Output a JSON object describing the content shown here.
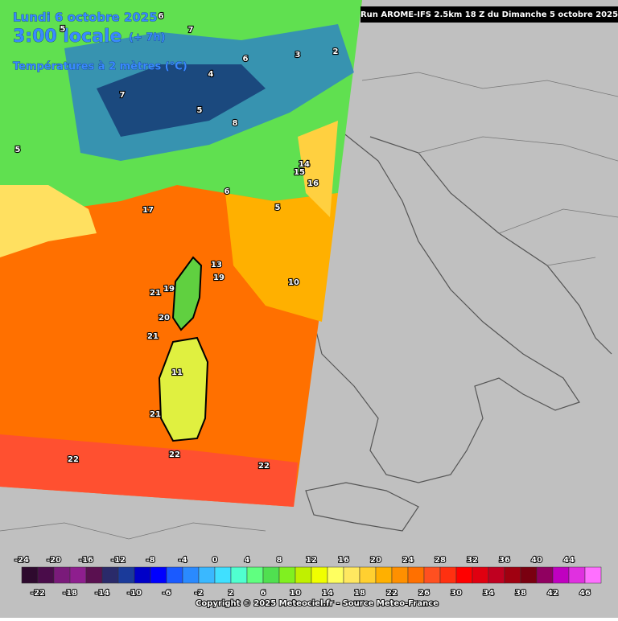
{
  "header": {
    "date": "Lundi 6 octobre 2025",
    "time": "3:00 locale",
    "offset": "(+ 7h)",
    "field": "Températures à 2 mètres (°C)",
    "run": "Run AROME-IFS 2.5km 18 Z du Dimanche 5 octobre 2025"
  },
  "map": {
    "temperature_labels": [
      22,
      22,
      22,
      21,
      20,
      21,
      21,
      19,
      19,
      13,
      16,
      14,
      15,
      17,
      11,
      5,
      6,
      7,
      8,
      5,
      3,
      2,
      6,
      5,
      10,
      6,
      5,
      7,
      4
    ]
  },
  "legend": {
    "ticks": [
      -24,
      -22,
      -20,
      -18,
      -16,
      -14,
      -12,
      -10,
      -8,
      -6,
      -4,
      -2,
      0,
      2,
      4,
      6,
      8,
      10,
      12,
      14,
      16,
      18,
      20,
      22,
      24,
      26,
      28,
      30,
      32,
      34,
      36,
      38,
      40,
      42,
      44,
      46
    ],
    "colors": [
      "#2e0a2e",
      "#4a0c4a",
      "#7a1a7a",
      "#8e1e8e",
      "#5a1050",
      "#2a2a6a",
      "#1a3a9a",
      "#0000c8",
      "#0000ff",
      "#1a5aff",
      "#2a8aff",
      "#3ab8ff",
      "#40e0ff",
      "#50ffd0",
      "#60ff80",
      "#50e050",
      "#80f020",
      "#c0f000",
      "#f0ff00",
      "#ffff60",
      "#ffe860",
      "#ffd030",
      "#ffb000",
      "#ff9000",
      "#ff7000",
      "#ff5020",
      "#ff3010",
      "#ff0000",
      "#e00010",
      "#c00020",
      "#a00010",
      "#7a0010",
      "#900060",
      "#c000c0",
      "#e030e0",
      "#ff70ff"
    ]
  },
  "footer": {
    "copyright": "Copyright © 2025 Meteociel.fr - Source Meteo-France"
  }
}
